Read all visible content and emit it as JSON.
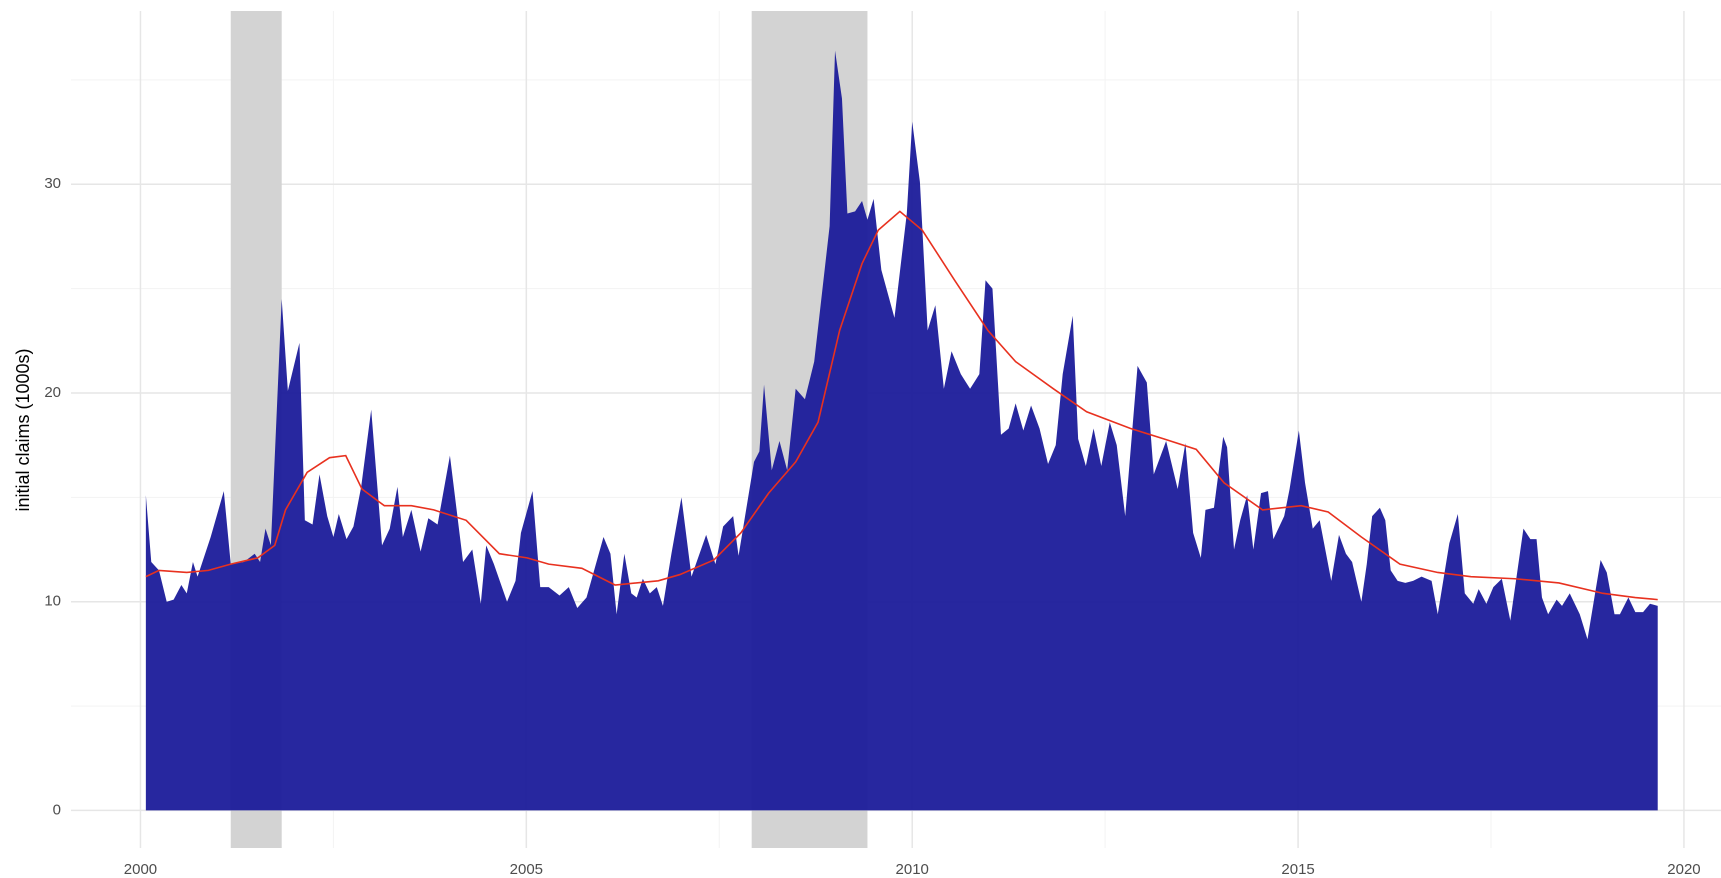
{
  "chart_data": {
    "type": "area",
    "y_label": "initial claims (1000s)",
    "xlim": [
      1999.1,
      2020.48
    ],
    "ylim": [
      -1.8,
      38.3
    ],
    "xticks": [
      2000,
      2005,
      2010,
      2015,
      2020
    ],
    "yticks": [
      0,
      10,
      20,
      30
    ],
    "xminor": [
      2002.5,
      2007.5,
      2012.5,
      2017.5
    ],
    "yminor": [
      5,
      15,
      25,
      35
    ],
    "grid": true,
    "shaded_periods": [
      [
        2001.17,
        2001.83
      ],
      [
        2007.92,
        2009.42
      ]
    ],
    "shade_color": "#d3d3d3",
    "series": [
      {
        "type": "area",
        "color": "#1a1a99",
        "x": [
          2000.07,
          2000.14,
          2000.24,
          2000.34,
          2000.43,
          2000.53,
          2000.6,
          2000.68,
          2000.74,
          2000.91,
          2001.08,
          2001.17,
          2001.34,
          2001.48,
          2001.55,
          2001.62,
          2001.69,
          2001.83,
          2001.91,
          2002.06,
          2002.13,
          2002.23,
          2002.32,
          2002.42,
          2002.5,
          2002.57,
          2002.67,
          2002.76,
          2002.86,
          2002.99,
          2003.13,
          2003.23,
          2003.33,
          2003.4,
          2003.51,
          2003.63,
          2003.73,
          2003.85,
          2004.01,
          2004.18,
          2004.3,
          2004.41,
          2004.48,
          2004.58,
          2004.75,
          2004.86,
          2004.93,
          2005.08,
          2005.18,
          2005.29,
          2005.43,
          2005.55,
          2005.66,
          2005.78,
          2006.0,
          2006.09,
          2006.17,
          2006.27,
          2006.36,
          2006.43,
          2006.51,
          2006.6,
          2006.69,
          2006.77,
          2006.88,
          2007.01,
          2007.14,
          2007.33,
          2007.45,
          2007.55,
          2007.68,
          2007.75,
          2007.95,
          2008.02,
          2008.08,
          2008.18,
          2008.28,
          2008.38,
          2008.49,
          2008.61,
          2008.73,
          2008.93,
          2009.0,
          2009.09,
          2009.16,
          2009.26,
          2009.35,
          2009.42,
          2009.5,
          2009.6,
          2009.77,
          2009.93,
          2010.0,
          2010.1,
          2010.2,
          2010.3,
          2010.41,
          2010.51,
          2010.63,
          2010.75,
          2010.87,
          2010.95,
          2011.04,
          2011.15,
          2011.25,
          2011.34,
          2011.44,
          2011.54,
          2011.65,
          2011.76,
          2011.86,
          2011.95,
          2012.08,
          2012.15,
          2012.25,
          2012.35,
          2012.45,
          2012.56,
          2012.65,
          2012.76,
          2012.92,
          2013.04,
          2013.13,
          2013.29,
          2013.44,
          2013.54,
          2013.64,
          2013.74,
          2013.8,
          2013.91,
          2014.03,
          2014.08,
          2014.17,
          2014.25,
          2014.34,
          2014.42,
          2014.52,
          2014.61,
          2014.68,
          2014.82,
          2014.89,
          2015.01,
          2015.09,
          2015.19,
          2015.28,
          2015.43,
          2015.53,
          2015.62,
          2015.7,
          2015.82,
          2015.89,
          2015.96,
          2016.06,
          2016.13,
          2016.2,
          2016.29,
          2016.39,
          2016.49,
          2016.6,
          2016.73,
          2016.81,
          2016.96,
          2017.07,
          2017.16,
          2017.27,
          2017.34,
          2017.44,
          2017.53,
          2017.64,
          2017.75,
          2017.92,
          2018.01,
          2018.09,
          2018.16,
          2018.24,
          2018.35,
          2018.42,
          2018.52,
          2018.65,
          2018.75,
          2018.92,
          2019.0,
          2019.1,
          2019.17,
          2019.28,
          2019.37,
          2019.47,
          2019.56,
          2019.66
        ],
        "values": [
          15.1,
          11.9,
          11.5,
          10.0,
          10.1,
          10.8,
          10.4,
          11.9,
          11.2,
          13.1,
          15.3,
          11.8,
          11.9,
          12.3,
          11.9,
          13.5,
          12.7,
          24.5,
          20.1,
          22.4,
          13.9,
          13.7,
          16.1,
          14.1,
          13.1,
          14.2,
          13.0,
          13.6,
          15.5,
          19.2,
          12.7,
          13.5,
          15.5,
          13.1,
          14.4,
          12.4,
          14.0,
          13.7,
          17.0,
          11.9,
          12.5,
          9.9,
          12.7,
          11.8,
          10.0,
          11.0,
          13.3,
          15.3,
          10.7,
          10.7,
          10.3,
          10.7,
          9.7,
          10.2,
          13.1,
          12.3,
          9.4,
          12.3,
          10.4,
          10.2,
          11.1,
          10.4,
          10.7,
          9.8,
          12.3,
          15.0,
          11.2,
          13.2,
          11.8,
          13.6,
          14.1,
          12.2,
          16.7,
          17.2,
          20.4,
          16.3,
          17.7,
          16.3,
          20.2,
          19.7,
          21.5,
          28.0,
          36.4,
          34.1,
          28.6,
          28.7,
          29.2,
          28.3,
          29.3,
          25.9,
          23.6,
          28.6,
          33.0,
          30.1,
          23.0,
          24.2,
          20.2,
          22.0,
          20.9,
          20.2,
          20.9,
          25.4,
          25.0,
          18.0,
          18.3,
          19.5,
          18.2,
          19.4,
          18.3,
          16.6,
          17.5,
          20.9,
          23.7,
          17.8,
          16.5,
          18.3,
          16.5,
          18.6,
          17.5,
          14.1,
          21.3,
          20.5,
          16.1,
          17.7,
          15.4,
          17.6,
          13.3,
          12.1,
          14.4,
          14.5,
          17.9,
          17.4,
          12.5,
          13.9,
          15.1,
          12.5,
          15.2,
          15.3,
          13.0,
          14.1,
          15.4,
          18.2,
          15.7,
          13.5,
          13.9,
          11.0,
          13.2,
          12.3,
          11.9,
          10.0,
          11.8,
          14.1,
          14.5,
          13.9,
          11.5,
          11.0,
          10.9,
          11.0,
          11.2,
          11.0,
          9.4,
          12.8,
          14.2,
          10.4,
          9.9,
          10.6,
          9.9,
          10.7,
          11.1,
          9.1,
          13.5,
          13.0,
          13.0,
          10.2,
          9.4,
          10.1,
          9.8,
          10.4,
          9.4,
          8.2,
          12.0,
          11.4,
          9.4,
          9.4,
          10.2,
          9.5,
          9.5,
          9.9,
          9.8
        ]
      },
      {
        "type": "line",
        "color": "#e8311f",
        "x": [
          2000.07,
          2000.24,
          2000.6,
          2000.88,
          2001.17,
          2001.52,
          2001.74,
          2001.88,
          2002.16,
          2002.45,
          2002.66,
          2002.87,
          2003.16,
          2003.51,
          2003.8,
          2004.22,
          2004.65,
          2005.01,
          2005.29,
          2005.72,
          2006.15,
          2006.71,
          2006.99,
          2007.43,
          2007.78,
          2008.14,
          2008.49,
          2008.78,
          2009.06,
          2009.35,
          2009.56,
          2009.84,
          2010.13,
          2010.55,
          2010.98,
          2011.34,
          2011.83,
          2012.26,
          2012.83,
          2013.26,
          2013.68,
          2014.04,
          2014.54,
          2015.04,
          2015.39,
          2015.82,
          2016.32,
          2016.81,
          2017.24,
          2017.81,
          2018.38,
          2018.95,
          2019.37,
          2019.66
        ],
        "values": [
          11.2,
          11.5,
          11.4,
          11.5,
          11.8,
          12.1,
          12.7,
          14.4,
          16.2,
          16.9,
          17.0,
          15.4,
          14.6,
          14.6,
          14.4,
          13.9,
          12.3,
          12.1,
          11.8,
          11.6,
          10.8,
          11.0,
          11.3,
          12.0,
          13.3,
          15.2,
          16.7,
          18.6,
          23.0,
          26.2,
          27.8,
          28.7,
          27.8,
          25.4,
          23.0,
          21.5,
          20.2,
          19.1,
          18.3,
          17.8,
          17.3,
          15.7,
          14.4,
          14.6,
          14.3,
          13.1,
          11.8,
          11.4,
          11.2,
          11.1,
          10.9,
          10.4,
          10.2,
          10.1
        ]
      }
    ]
  }
}
